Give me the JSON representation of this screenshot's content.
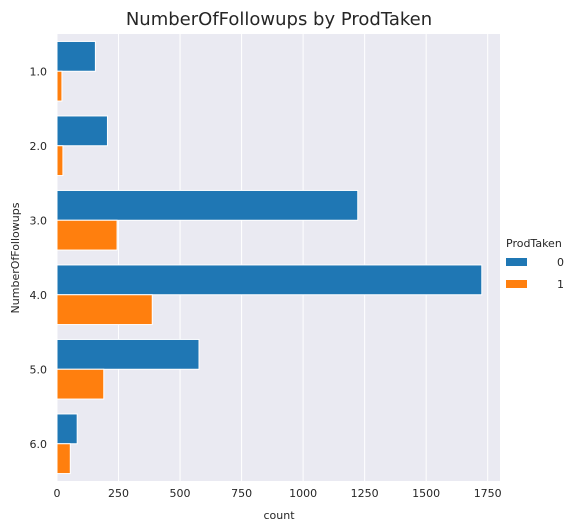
{
  "chart_data": {
    "type": "bar",
    "orientation": "horizontal",
    "title": "NumberOfFollowups by ProdTaken",
    "xlabel": "count",
    "ylabel": "NumberOfFollowups",
    "categories": [
      "1.0",
      "2.0",
      "3.0",
      "4.0",
      "5.0",
      "6.0"
    ],
    "series": [
      {
        "name": "0",
        "color": "#1f77b4",
        "values": [
          156,
          205,
          1222,
          1726,
          577,
          82
        ]
      },
      {
        "name": "1",
        "color": "#ff7f0e",
        "values": [
          20,
          24,
          244,
          387,
          190,
          54
        ]
      }
    ],
    "xlim": [
      0,
      1800
    ],
    "xticks": [
      0,
      250,
      500,
      750,
      1000,
      1250,
      1500,
      1750
    ],
    "grid": true,
    "legend": {
      "title": "ProdTaken",
      "position": "right"
    },
    "plot_background": "#eaeaf2"
  }
}
